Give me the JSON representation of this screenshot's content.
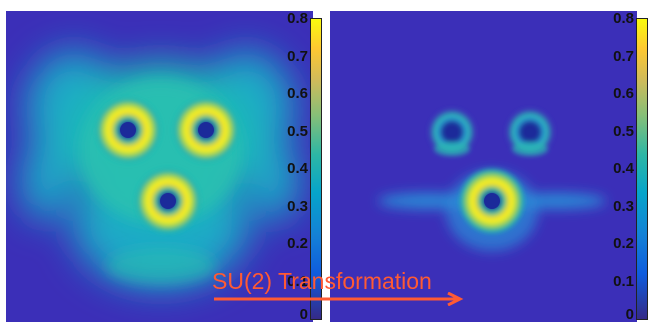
{
  "chart_data": [
    {
      "type": "heatmap",
      "title": "",
      "colorbar": {
        "ticks": [
          "0.8",
          "0.7",
          "0.6",
          "0.5",
          "0.4",
          "0.3",
          "0.2",
          "0.1",
          "0"
        ],
        "range": [
          0,
          0.8
        ],
        "colormap": "parula"
      },
      "description_rings": 3
    },
    {
      "type": "heatmap",
      "title": "",
      "colorbar": {
        "ticks": [
          "0.8",
          "0.7",
          "0.6",
          "0.5",
          "0.4",
          "0.3",
          "0.2",
          "0.1",
          "0"
        ],
        "range": [
          0,
          0.8
        ],
        "colormap": "parula"
      },
      "description_rings": 3
    }
  ],
  "annotation": {
    "label": "SU(2) Transformation",
    "color": "#ff5a33"
  },
  "colors": {
    "background": "#3b2fb8",
    "peak": "#f9f621"
  }
}
